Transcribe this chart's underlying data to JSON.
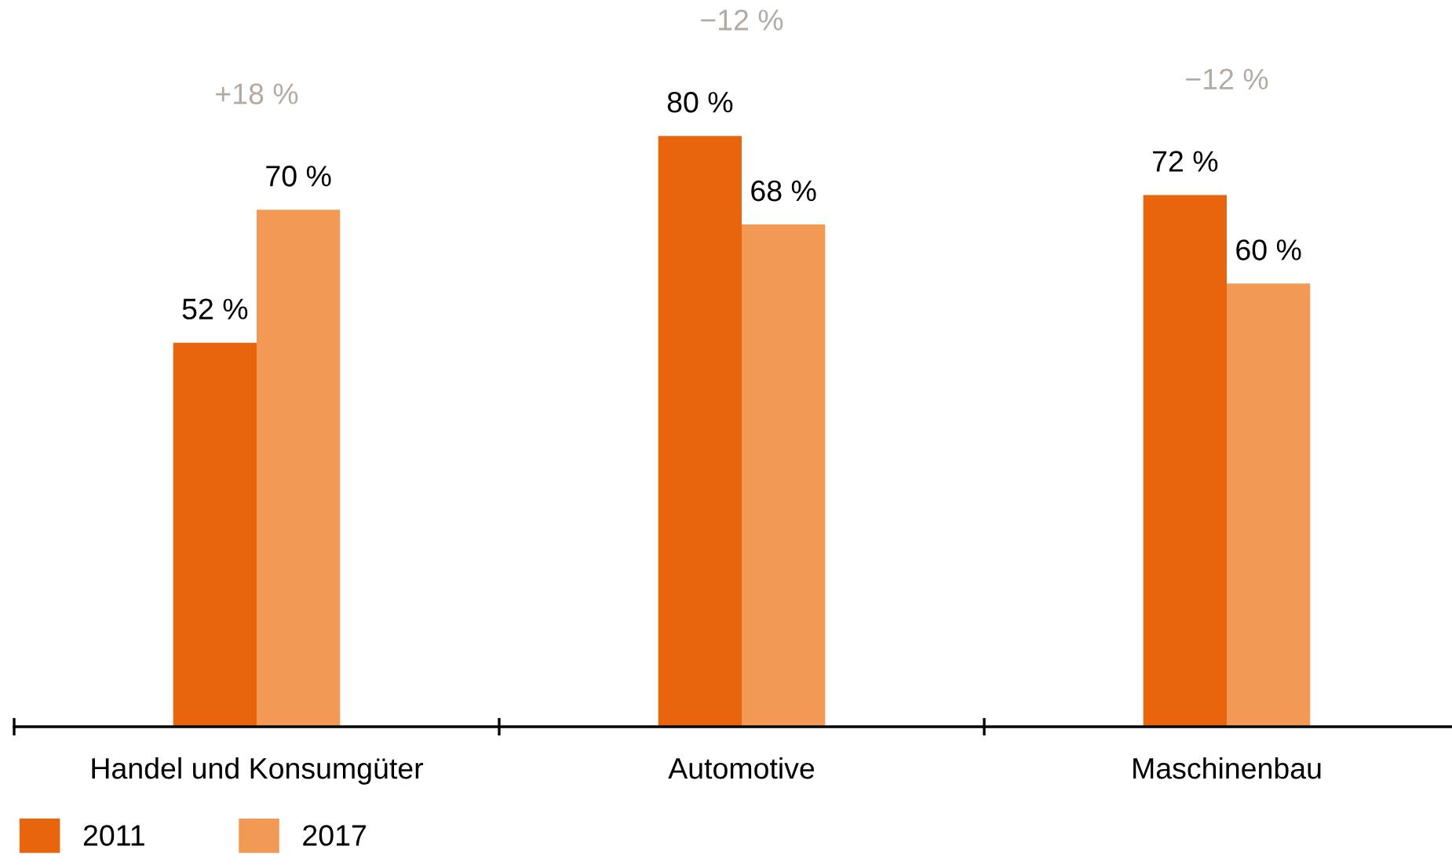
{
  "chart_data": {
    "type": "bar",
    "categories": [
      "Handel und Konsumgüter",
      "Automotive",
      "Maschinenbau"
    ],
    "series": [
      {
        "name": "2011",
        "color": "#e8650e",
        "values": [
          52,
          80,
          72
        ],
        "value_labels": [
          "52 %",
          "80 %",
          "72 %"
        ]
      },
      {
        "name": "2017",
        "color": "#f29a55",
        "values": [
          70,
          68,
          60
        ],
        "value_labels": [
          "70 %",
          "68 %",
          "60 %"
        ]
      }
    ],
    "annotations": [
      "+18 %",
      "−12 %",
      "−12 %"
    ],
    "legend": "bottom left",
    "grid": false
  }
}
